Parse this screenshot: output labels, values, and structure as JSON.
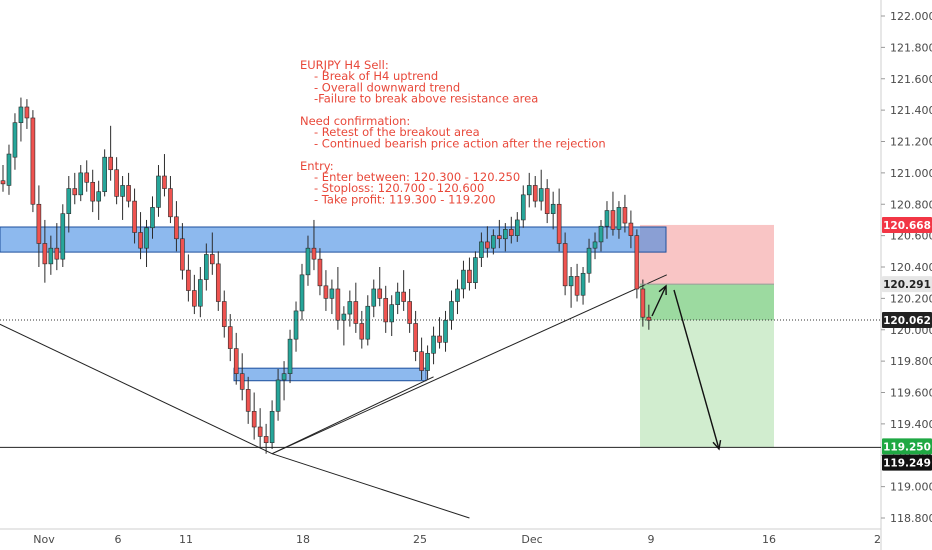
{
  "chart_data": {
    "type": "candlestick",
    "symbol": "EURJPY",
    "timeframe": "H4",
    "ylim": [
      118.74,
      122.1
    ],
    "y_ticks": [
      "122.000",
      "121.800",
      "121.600",
      "121.400",
      "121.200",
      "121.000",
      "120.800",
      "120.600",
      "120.400",
      "120.200",
      "120.000",
      "119.800",
      "119.600",
      "119.400",
      "119.200",
      "119.000",
      "118.800"
    ],
    "x_ticks": [
      "Nov",
      "6",
      "11",
      "18",
      "25",
      "Dec",
      "9",
      "16",
      "2"
    ],
    "price_labels": [
      {
        "value": "120.668",
        "bg": "#f23645",
        "fg": "#ffffff"
      },
      {
        "value": "120.291",
        "bg": "#e6e6e6",
        "fg": "#222222"
      },
      {
        "value": "120.062",
        "bg": "#222222",
        "fg": "#ffffff"
      },
      {
        "value": "119.250",
        "bg": "#1fa843",
        "fg": "#ffffff"
      },
      {
        "value": "119.249",
        "bg": "#111111",
        "fg": "#ffffff"
      }
    ],
    "annotation_lines": [
      "EURJPY H4 Sell:",
      "- Break of H4 uptrend",
      "- Overall downward trend",
      "-Failure to break above resistance area",
      "",
      "Need confirmation:",
      "- Retest of the breakout area",
      "- Continued bearish price action after the rejection",
      "",
      "Entry:",
      "- Enter between: 120.300 - 120.250",
      "- Stoploss: 120.700 - 120.600",
      "- Take profit: 119.300 - 119.200"
    ],
    "zones": {
      "resistance": [
        120.495,
        120.655
      ],
      "support": [
        119.675,
        119.755
      ],
      "stop_loss": [
        120.291,
        120.668
      ],
      "take_profit": [
        119.25,
        120.291
      ],
      "entry_level": 120.062,
      "target_level": 119.25
    },
    "trendlines": [
      {
        "from": [
          -3,
          120.08
        ],
        "to": [
          45,
          119.21
        ]
      },
      {
        "from": [
          45,
          119.21
        ],
        "to": [
          78,
          118.8
        ]
      },
      {
        "from": [
          45,
          119.21
        ],
        "to": [
          111,
          120.35
        ]
      },
      {
        "from": [
          45,
          119.21
        ],
        "to": [
          72,
          119.7
        ]
      }
    ],
    "colors": {
      "bull": "#26a69a",
      "bear": "#ef5350",
      "zone_blue": "#2f7fe0",
      "stop_fill": "#f7b2b2",
      "target_fill": "#97d89b",
      "target_fill_light": "#cfeccc",
      "annotation": "#e8483a"
    },
    "candles": [
      [
        120.95,
        121.05,
        120.88,
        120.93
      ],
      [
        120.92,
        121.18,
        120.86,
        121.12
      ],
      [
        121.1,
        121.38,
        121.02,
        121.32
      ],
      [
        121.32,
        121.48,
        121.2,
        121.42
      ],
      [
        121.42,
        121.47,
        121.28,
        121.35
      ],
      [
        121.35,
        121.4,
        120.75,
        120.8
      ],
      [
        120.8,
        120.92,
        120.4,
        120.55
      ],
      [
        120.55,
        120.7,
        120.3,
        120.42
      ],
      [
        120.42,
        120.6,
        120.35,
        120.52
      ],
      [
        120.52,
        120.68,
        120.38,
        120.45
      ],
      [
        120.45,
        120.8,
        120.4,
        120.74
      ],
      [
        120.74,
        120.98,
        120.62,
        120.9
      ],
      [
        120.9,
        121.0,
        120.8,
        120.86
      ],
      [
        120.86,
        121.05,
        120.82,
        121.0
      ],
      [
        121.0,
        121.08,
        120.88,
        120.94
      ],
      [
        120.94,
        121.02,
        120.75,
        120.82
      ],
      [
        120.82,
        120.95,
        120.7,
        120.88
      ],
      [
        120.88,
        121.15,
        120.85,
        121.1
      ],
      [
        121.1,
        121.3,
        120.95,
        121.02
      ],
      [
        121.02,
        121.1,
        120.8,
        120.85
      ],
      [
        120.85,
        120.98,
        120.7,
        120.92
      ],
      [
        120.92,
        121.0,
        120.78,
        120.82
      ],
      [
        120.82,
        120.9,
        120.55,
        120.62
      ],
      [
        120.62,
        120.75,
        120.45,
        120.52
      ],
      [
        120.52,
        120.7,
        120.4,
        120.65
      ],
      [
        120.65,
        120.85,
        120.58,
        120.78
      ],
      [
        120.78,
        121.05,
        120.72,
        120.98
      ],
      [
        120.98,
        121.12,
        120.85,
        120.9
      ],
      [
        120.9,
        120.98,
        120.68,
        120.72
      ],
      [
        120.72,
        120.82,
        120.5,
        120.58
      ],
      [
        120.58,
        120.68,
        120.32,
        120.38
      ],
      [
        120.38,
        120.48,
        120.18,
        120.25
      ],
      [
        120.25,
        120.35,
        120.1,
        120.15
      ],
      [
        120.15,
        120.4,
        120.08,
        120.32
      ],
      [
        120.32,
        120.55,
        120.25,
        120.48
      ],
      [
        120.48,
        120.62,
        120.35,
        120.42
      ],
      [
        120.42,
        120.5,
        120.12,
        120.18
      ],
      [
        120.18,
        120.25,
        119.95,
        120.02
      ],
      [
        120.02,
        120.1,
        119.8,
        119.88
      ],
      [
        119.88,
        119.98,
        119.65,
        119.72
      ],
      [
        119.72,
        119.85,
        119.55,
        119.62
      ],
      [
        119.62,
        119.7,
        119.4,
        119.48
      ],
      [
        119.48,
        119.6,
        119.3,
        119.38
      ],
      [
        119.38,
        119.5,
        119.25,
        119.32
      ],
      [
        119.32,
        119.4,
        119.21,
        119.28
      ],
      [
        119.28,
        119.55,
        119.24,
        119.48
      ],
      [
        119.48,
        119.75,
        119.42,
        119.68
      ],
      [
        119.68,
        119.8,
        119.55,
        119.72
      ],
      [
        119.72,
        120.0,
        119.66,
        119.94
      ],
      [
        119.94,
        120.18,
        119.86,
        120.12
      ],
      [
        120.12,
        120.42,
        120.06,
        120.35
      ],
      [
        120.35,
        120.6,
        120.28,
        120.52
      ],
      [
        120.52,
        120.7,
        120.38,
        120.45
      ],
      [
        120.45,
        120.52,
        120.22,
        120.28
      ],
      [
        120.28,
        120.38,
        120.12,
        120.2
      ],
      [
        120.2,
        120.32,
        120.1,
        120.26
      ],
      [
        120.26,
        120.4,
        120.0,
        120.06
      ],
      [
        120.06,
        120.15,
        119.9,
        120.1
      ],
      [
        120.1,
        120.25,
        120.02,
        120.18
      ],
      [
        120.18,
        120.3,
        119.98,
        120.04
      ],
      [
        120.04,
        120.12,
        119.88,
        119.94
      ],
      [
        119.94,
        120.22,
        119.9,
        120.15
      ],
      [
        120.15,
        120.32,
        120.08,
        120.26
      ],
      [
        120.26,
        120.4,
        120.15,
        120.2
      ],
      [
        120.2,
        120.28,
        119.98,
        120.05
      ],
      [
        120.05,
        120.22,
        119.96,
        120.16
      ],
      [
        120.16,
        120.3,
        120.1,
        120.24
      ],
      [
        120.24,
        120.38,
        120.12,
        120.18
      ],
      [
        120.18,
        120.26,
        119.98,
        120.04
      ],
      [
        120.04,
        120.12,
        119.8,
        119.86
      ],
      [
        119.86,
        119.95,
        119.68,
        119.74
      ],
      [
        119.74,
        119.9,
        119.68,
        119.85
      ],
      [
        119.85,
        120.02,
        119.78,
        119.96
      ],
      [
        119.96,
        120.08,
        119.88,
        119.92
      ],
      [
        119.92,
        120.12,
        119.86,
        120.06
      ],
      [
        120.06,
        120.25,
        120.0,
        120.18
      ],
      [
        120.18,
        120.32,
        120.1,
        120.26
      ],
      [
        120.26,
        120.44,
        120.2,
        120.38
      ],
      [
        120.38,
        120.46,
        120.25,
        120.3
      ],
      [
        120.3,
        120.5,
        120.26,
        120.46
      ],
      [
        120.46,
        120.62,
        120.4,
        120.56
      ],
      [
        120.56,
        120.66,
        120.46,
        120.52
      ],
      [
        120.52,
        120.64,
        120.48,
        120.6
      ],
      [
        120.6,
        120.7,
        120.52,
        120.58
      ],
      [
        120.58,
        120.68,
        120.5,
        120.64
      ],
      [
        120.64,
        120.72,
        120.55,
        120.6
      ],
      [
        120.6,
        120.75,
        120.56,
        120.7
      ],
      [
        120.7,
        120.92,
        120.65,
        120.86
      ],
      [
        120.86,
        121.0,
        120.78,
        120.92
      ],
      [
        120.92,
        120.98,
        120.78,
        120.82
      ],
      [
        120.82,
        121.02,
        120.76,
        120.9
      ],
      [
        120.9,
        120.96,
        120.68,
        120.74
      ],
      [
        120.74,
        120.88,
        120.64,
        120.8
      ],
      [
        120.8,
        120.9,
        120.5,
        120.55
      ],
      [
        120.55,
        120.62,
        120.22,
        120.28
      ],
      [
        120.28,
        120.4,
        120.14,
        120.34
      ],
      [
        120.34,
        120.42,
        120.18,
        120.22
      ],
      [
        120.22,
        120.4,
        120.16,
        120.36
      ],
      [
        120.36,
        120.58,
        120.3,
        120.52
      ],
      [
        120.52,
        120.62,
        120.45,
        120.56
      ],
      [
        120.56,
        120.7,
        120.5,
        120.66
      ],
      [
        120.66,
        120.82,
        120.58,
        120.76
      ],
      [
        120.76,
        120.88,
        120.6,
        120.64
      ],
      [
        120.64,
        120.82,
        120.58,
        120.78
      ],
      [
        120.78,
        120.86,
        120.62,
        120.68
      ],
      [
        120.68,
        120.76,
        120.52,
        120.6
      ],
      [
        120.6,
        120.64,
        120.2,
        120.26
      ],
      [
        120.26,
        120.32,
        120.02,
        120.08
      ],
      [
        120.08,
        120.16,
        120.0,
        120.06
      ]
    ]
  }
}
